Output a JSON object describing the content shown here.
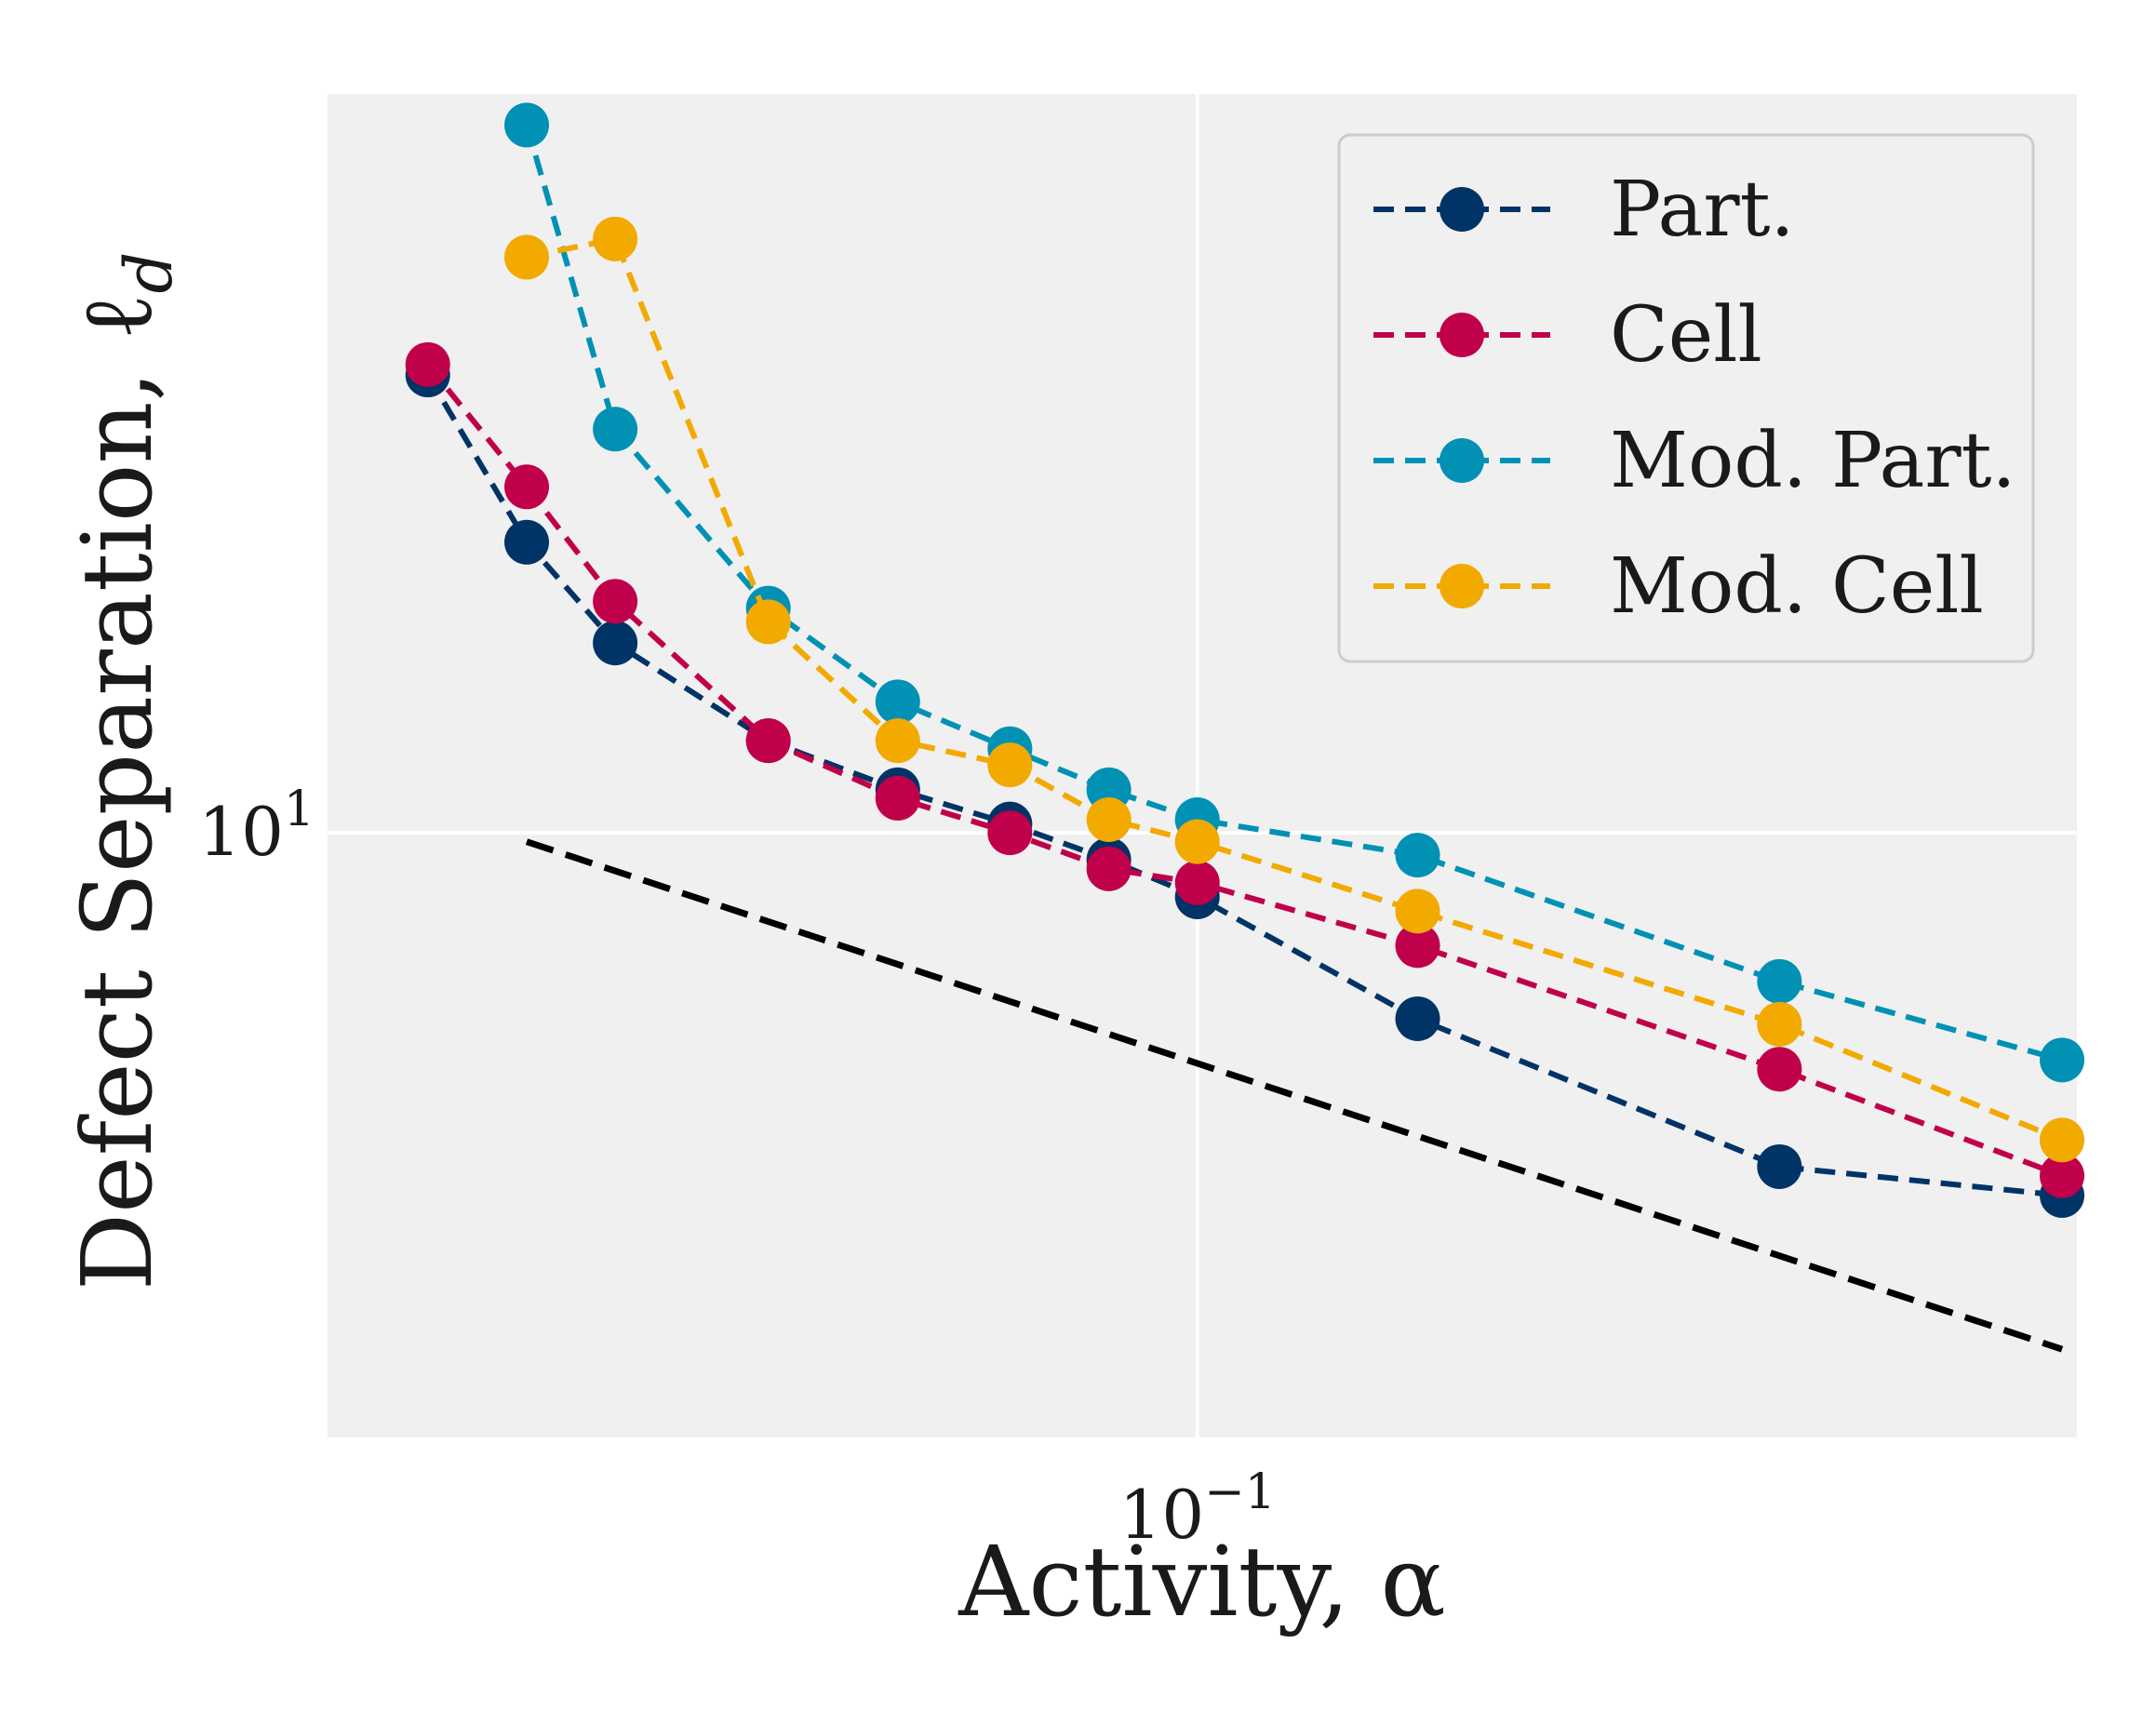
{
  "chart_data": {
    "type": "line",
    "xlabel": "Activity, α",
    "ylabel": "Defect Separation, ℓ",
    "ylabel_sub": "d",
    "xscale": "log",
    "yscale": "log",
    "xlim": [
      0.0355,
      0.285
    ],
    "ylim": [
      5.04,
      23.1
    ],
    "xticks": [
      {
        "value": 0.1,
        "base": "10",
        "exp": "−1"
      }
    ],
    "yticks": [
      {
        "value": 10,
        "base": "10",
        "exp": "1"
      }
    ],
    "grid": true,
    "legend_position": "top-right",
    "background": "#f0f0f0",
    "series": [
      {
        "name": "Part.",
        "color": "#003366",
        "x": [
          0.04,
          0.045,
          0.05,
          0.06,
          0.07,
          0.08,
          0.09,
          0.1,
          0.13,
          0.2,
          0.28
        ],
        "y": [
          16.8,
          13.9,
          12.4,
          11.1,
          10.5,
          10.1,
          9.7,
          9.3,
          8.1,
          6.85,
          6.63
        ]
      },
      {
        "name": "Cell",
        "color": "#c0004a",
        "x": [
          0.04,
          0.045,
          0.05,
          0.06,
          0.07,
          0.08,
          0.09,
          0.1,
          0.13,
          0.2,
          0.28
        ],
        "y": [
          17.0,
          14.8,
          13.0,
          11.1,
          10.4,
          10.0,
          9.6,
          9.45,
          8.8,
          7.65,
          6.78
        ]
      },
      {
        "name": "Mod. Part.",
        "color": "#0091b5",
        "x": [
          0.045,
          0.05,
          0.06,
          0.07,
          0.08,
          0.09,
          0.1,
          0.13,
          0.2,
          0.28
        ],
        "y": [
          22.3,
          15.8,
          12.9,
          11.6,
          11.0,
          10.5,
          10.15,
          9.75,
          8.45,
          7.73
        ]
      },
      {
        "name": "Mod. Cell",
        "color": "#f2a900",
        "x": [
          0.045,
          0.05,
          0.06,
          0.07,
          0.08,
          0.09,
          0.1,
          0.13,
          0.2,
          0.28
        ],
        "y": [
          19.2,
          19.6,
          12.7,
          11.1,
          10.8,
          10.15,
          9.9,
          9.15,
          8.05,
          7.06
        ]
      }
    ],
    "reference_line": {
      "color": "#000000",
      "style": "dashed",
      "x": [
        0.045,
        0.28
      ],
      "y": [
        9.9,
        5.57
      ]
    }
  }
}
